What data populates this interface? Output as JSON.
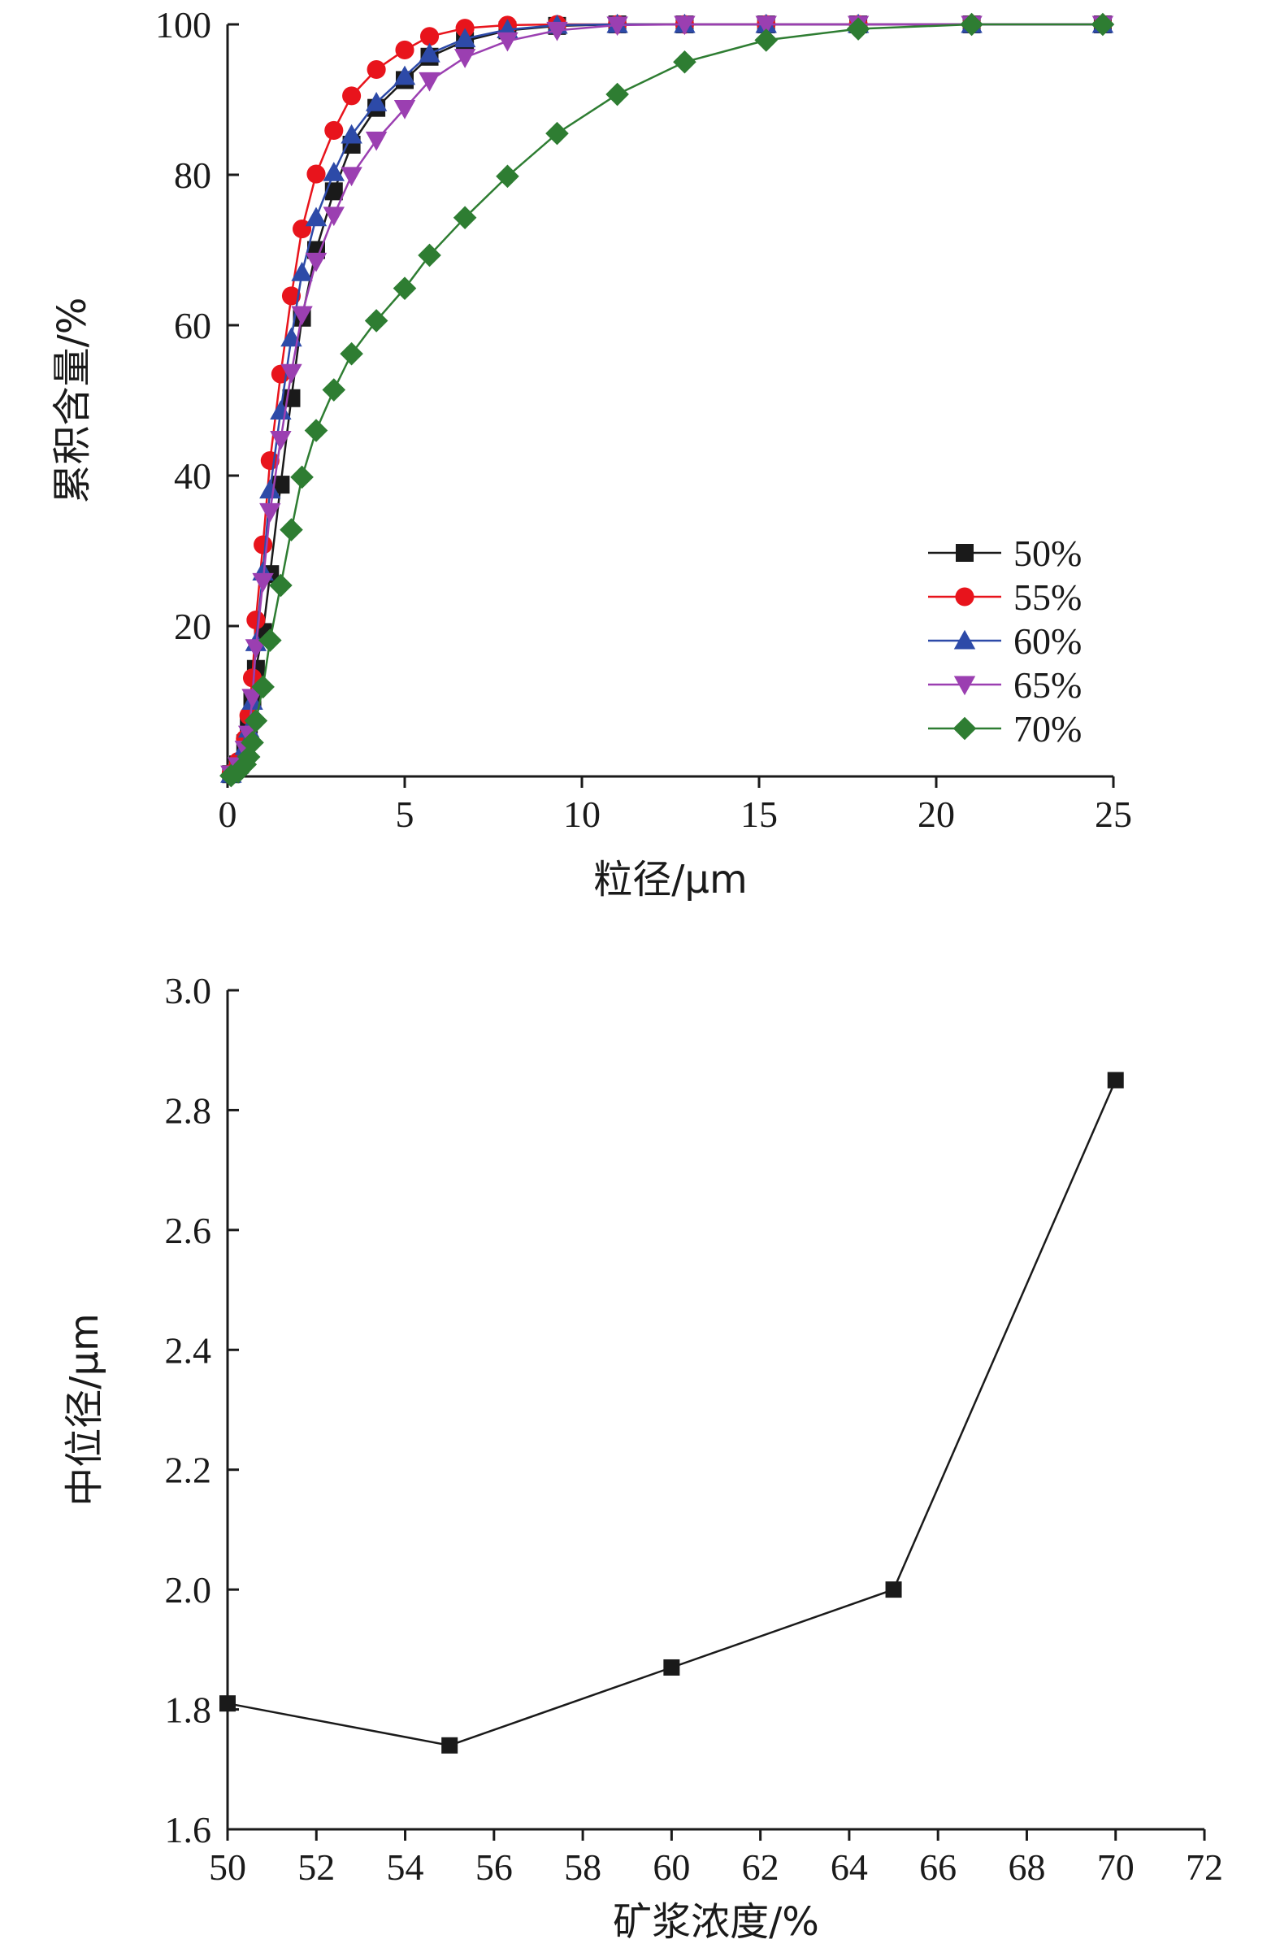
{
  "chart_data": [
    {
      "type": "line",
      "title": "",
      "xlabel": "粒径/μm",
      "ylabel": "累积含量/%",
      "xlim": [
        0,
        25
      ],
      "ylim": [
        0,
        100
      ],
      "xticks": [
        0,
        5,
        10,
        15,
        20,
        25
      ],
      "yticks": [
        20,
        40,
        60,
        80,
        100
      ],
      "grid": false,
      "legend_position": "bottom-right",
      "series": [
        {
          "name": "50%",
          "color": "#1a1a1a",
          "marker": "square",
          "x": [
            0.1,
            0.3,
            0.5,
            0.6,
            0.7,
            0.8,
            1.0,
            1.2,
            1.5,
            1.8,
            2.1,
            2.5,
            3.0,
            3.5,
            4.2,
            5.0,
            5.7,
            6.7,
            7.9,
            9.3,
            11.0,
            12.9,
            15.2,
            17.8,
            21.0,
            24.7
          ],
          "y": [
            0.3,
            1.6,
            4.4,
            6.9,
            10.2,
            14.3,
            19.2,
            26.9,
            38.8,
            50.3,
            61.0,
            70.0,
            77.8,
            84.0,
            88.9,
            92.6,
            95.7,
            97.8,
            99.2,
            99.8,
            100,
            100,
            100,
            100,
            100,
            100
          ]
        },
        {
          "name": "55%",
          "color": "#e8141c",
          "marker": "circle",
          "x": [
            0.1,
            0.3,
            0.5,
            0.6,
            0.7,
            0.8,
            1.0,
            1.2,
            1.5,
            1.8,
            2.1,
            2.5,
            3.0,
            3.5,
            4.2,
            5.0,
            5.7,
            6.7,
            7.9,
            9.3,
            11.0,
            12.9,
            15.2,
            17.8,
            21.0,
            24.7
          ],
          "y": [
            0.4,
            2.0,
            5.0,
            8.1,
            13.1,
            20.8,
            30.8,
            42.0,
            53.5,
            63.9,
            72.8,
            80.1,
            85.9,
            90.5,
            94.0,
            96.6,
            98.4,
            99.5,
            99.9,
            100,
            100,
            100,
            100,
            100,
            100,
            100
          ]
        },
        {
          "name": "60%",
          "color": "#2d4aa8",
          "marker": "triangle-up",
          "x": [
            0.1,
            0.3,
            0.5,
            0.6,
            0.7,
            0.8,
            1.0,
            1.2,
            1.5,
            1.8,
            2.1,
            2.5,
            3.0,
            3.5,
            4.2,
            5.0,
            5.7,
            6.7,
            7.9,
            9.3,
            11.0,
            12.9,
            15.2,
            17.8,
            21.0,
            24.7
          ],
          "y": [
            0.3,
            1.5,
            4.0,
            6.3,
            10.0,
            17.8,
            27.2,
            38.1,
            48.6,
            58.3,
            67.0,
            74.3,
            80.3,
            85.3,
            89.6,
            93.1,
            96.1,
            98.1,
            99.3,
            99.9,
            100,
            100,
            100,
            100,
            100,
            100
          ]
        },
        {
          "name": "65%",
          "color": "#9b3fb1",
          "marker": "triangle-down",
          "x": [
            0.1,
            0.3,
            0.5,
            0.6,
            0.7,
            0.8,
            1.0,
            1.2,
            1.5,
            1.8,
            2.1,
            2.5,
            3.0,
            3.5,
            4.2,
            5.0,
            5.7,
            6.7,
            7.9,
            9.3,
            11.0,
            12.9,
            15.2,
            17.8,
            21.0,
            24.7
          ],
          "y": [
            0.3,
            1.4,
            3.6,
            5.6,
            10.5,
            17.1,
            25.9,
            35.2,
            44.8,
            53.7,
            61.4,
            68.5,
            74.6,
            79.9,
            84.6,
            88.8,
            92.5,
            95.6,
            97.8,
            99.2,
            99.9,
            100,
            100,
            100,
            100,
            100
          ]
        },
        {
          "name": "70%",
          "color": "#2e7d32",
          "marker": "diamond",
          "x": [
            0.1,
            0.3,
            0.5,
            0.6,
            0.7,
            0.8,
            1.0,
            1.2,
            1.5,
            1.8,
            2.1,
            2.5,
            3.0,
            3.5,
            4.2,
            5.0,
            5.7,
            6.7,
            7.9,
            9.3,
            11.0,
            12.9,
            15.2,
            17.8,
            21.0,
            24.7
          ],
          "y": [
            0.1,
            0.6,
            1.6,
            2.6,
            4.5,
            7.4,
            11.9,
            18.1,
            25.4,
            32.8,
            39.8,
            46.0,
            51.4,
            56.2,
            60.6,
            64.9,
            69.3,
            74.3,
            79.8,
            85.5,
            90.7,
            95.0,
            97.9,
            99.4,
            100,
            100
          ]
        }
      ]
    },
    {
      "type": "line",
      "title": "",
      "xlabel": "矿浆浓度/%",
      "ylabel": "中位径/μm",
      "xlim": [
        50,
        72
      ],
      "ylim": [
        1.6,
        3.0
      ],
      "xticks": [
        50,
        52,
        54,
        56,
        58,
        60,
        62,
        64,
        66,
        68,
        70,
        72
      ],
      "yticks": [
        "1.6",
        "1.8",
        "2.0",
        "2.2",
        "2.4",
        "2.6",
        "2.8",
        "3.0"
      ],
      "grid": false,
      "series": [
        {
          "color": "#1a1a1a",
          "marker": "square",
          "x": [
            50,
            55,
            60,
            65,
            70
          ],
          "y": [
            1.81,
            1.74,
            1.87,
            2.0,
            2.85
          ]
        }
      ]
    }
  ]
}
